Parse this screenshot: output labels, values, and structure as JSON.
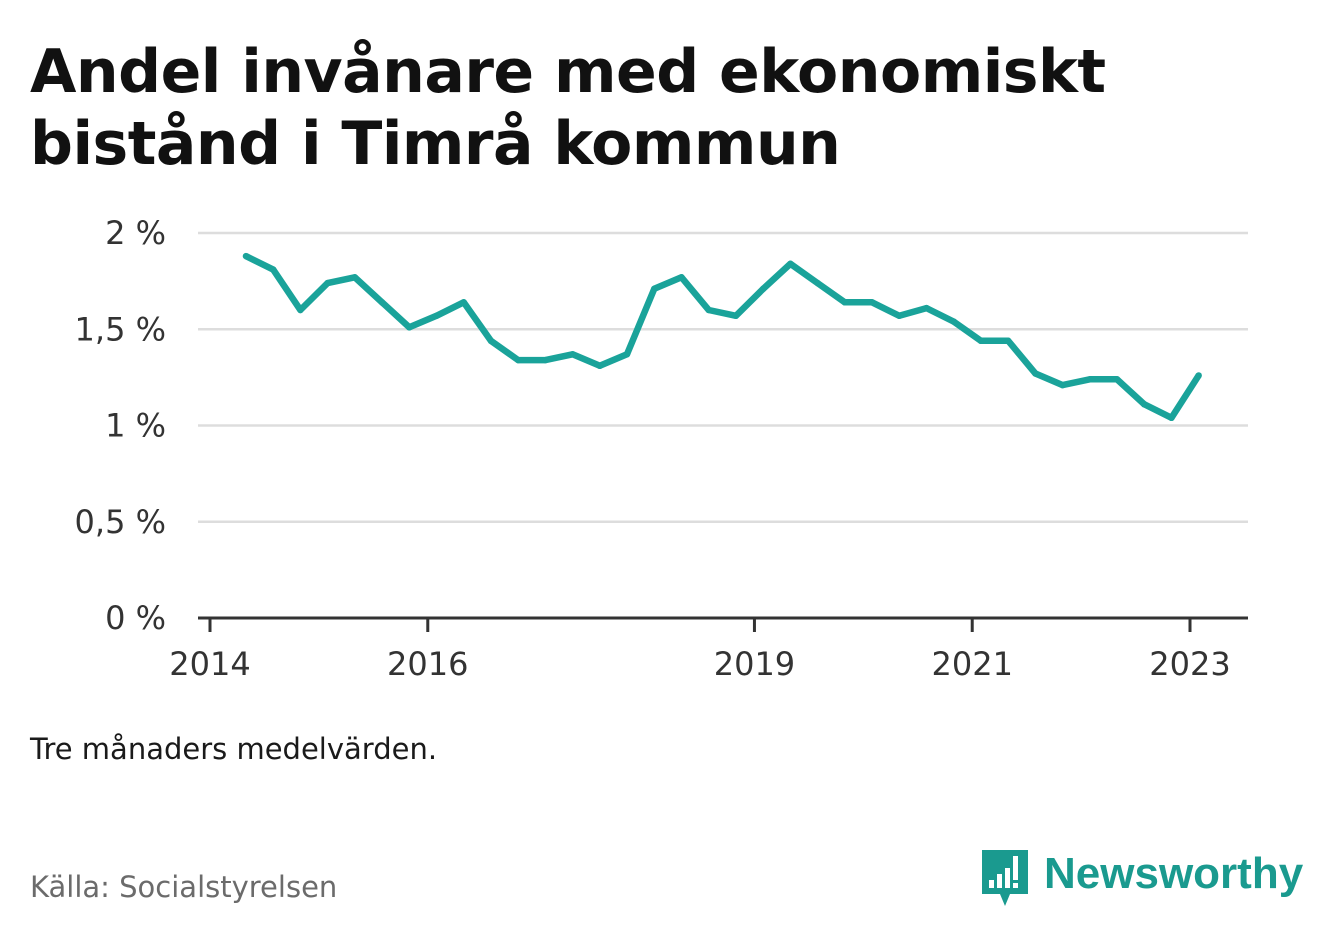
{
  "title": "Andel invånare med ekonomiskt bistånd i Timrå kommun",
  "subtitle": "Tre månaders medelvärden.",
  "source": "Källa: Socialstyrelsen",
  "brand": {
    "name": "Newsworthy",
    "icon": "newsworthy-logo-icon",
    "color": "#1a9a8f"
  },
  "colors": {
    "line": "#1aa39a",
    "grid": "#dddddd",
    "axis": "#333333"
  },
  "chart_data": {
    "type": "line",
    "title": "Andel invånare med ekonomiskt bistånd i Timrå kommun",
    "xlabel": "",
    "ylabel": "",
    "ylim": [
      0,
      2
    ],
    "xlim": [
      2014,
      2023.5
    ],
    "grid": true,
    "legend": "none",
    "y_ticks": [
      {
        "value": 0,
        "label": "0 %"
      },
      {
        "value": 0.5,
        "label": "0,5 %"
      },
      {
        "value": 1,
        "label": "1 %"
      },
      {
        "value": 1.5,
        "label": "1,5 %"
      },
      {
        "value": 2,
        "label": "2 %"
      }
    ],
    "x_ticks": [
      {
        "value": 2014,
        "label": "2014"
      },
      {
        "value": 2016,
        "label": "2016"
      },
      {
        "value": 2019,
        "label": "2019"
      },
      {
        "value": 2021,
        "label": "2021"
      },
      {
        "value": 2023,
        "label": "2023"
      }
    ],
    "series": [
      {
        "color": "#1aa39a",
        "points": [
          {
            "x": 2014.33,
            "y": 1.88
          },
          {
            "x": 2014.58,
            "y": 1.81
          },
          {
            "x": 2014.83,
            "y": 1.6
          },
          {
            "x": 2015.08,
            "y": 1.74
          },
          {
            "x": 2015.33,
            "y": 1.77
          },
          {
            "x": 2015.58,
            "y": 1.64
          },
          {
            "x": 2015.83,
            "y": 1.51
          },
          {
            "x": 2016.08,
            "y": 1.57
          },
          {
            "x": 2016.33,
            "y": 1.64
          },
          {
            "x": 2016.58,
            "y": 1.44
          },
          {
            "x": 2016.83,
            "y": 1.34
          },
          {
            "x": 2017.08,
            "y": 1.34
          },
          {
            "x": 2017.33,
            "y": 1.37
          },
          {
            "x": 2017.58,
            "y": 1.31
          },
          {
            "x": 2017.83,
            "y": 1.37
          },
          {
            "x": 2018.08,
            "y": 1.71
          },
          {
            "x": 2018.33,
            "y": 1.77
          },
          {
            "x": 2018.58,
            "y": 1.6
          },
          {
            "x": 2018.83,
            "y": 1.57
          },
          {
            "x": 2019.08,
            "y": 1.71
          },
          {
            "x": 2019.33,
            "y": 1.84
          },
          {
            "x": 2019.58,
            "y": 1.74
          },
          {
            "x": 2019.83,
            "y": 1.64
          },
          {
            "x": 2020.08,
            "y": 1.64
          },
          {
            "x": 2020.33,
            "y": 1.57
          },
          {
            "x": 2020.58,
            "y": 1.61
          },
          {
            "x": 2020.83,
            "y": 1.54
          },
          {
            "x": 2021.08,
            "y": 1.44
          },
          {
            "x": 2021.33,
            "y": 1.44
          },
          {
            "x": 2021.58,
            "y": 1.27
          },
          {
            "x": 2021.83,
            "y": 1.21
          },
          {
            "x": 2022.08,
            "y": 1.24
          },
          {
            "x": 2022.33,
            "y": 1.24
          },
          {
            "x": 2022.58,
            "y": 1.11
          },
          {
            "x": 2022.83,
            "y": 1.04
          },
          {
            "x": 2023.08,
            "y": 1.26
          }
        ]
      }
    ]
  }
}
